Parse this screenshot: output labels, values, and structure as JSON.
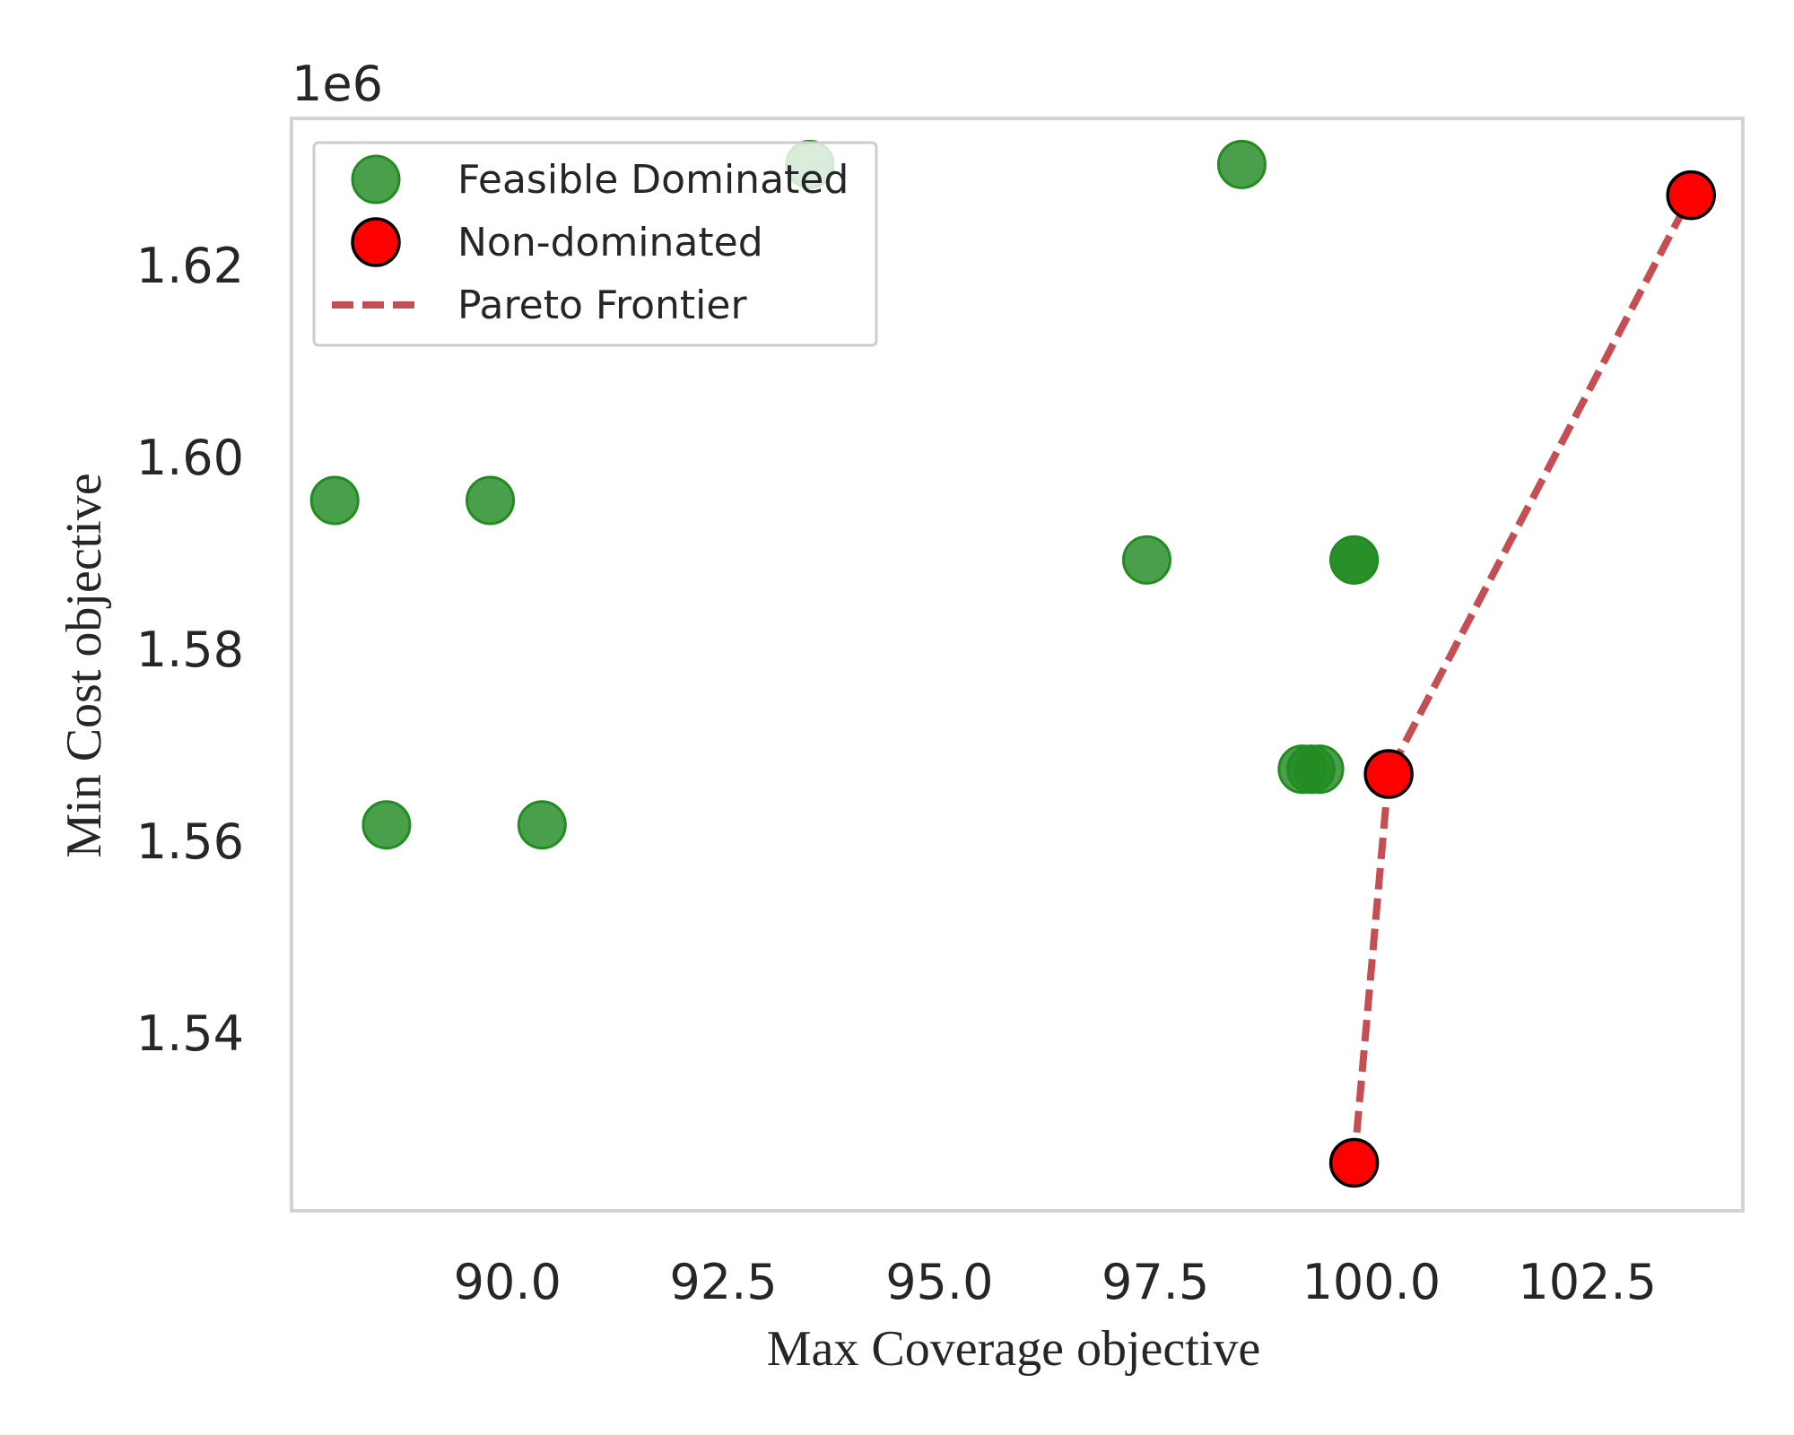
{
  "chart_data": {
    "type": "scatter",
    "title": "",
    "xlabel": "Max Coverage objective",
    "ylabel": "Min Cost objective",
    "y_offset_label": "1e6",
    "xlim": [
      87.5,
      104.3
    ],
    "ylim": [
      1.5215,
      1.6353
    ],
    "x_ticks": [
      90.0,
      92.5,
      95.0,
      97.5,
      100.0,
      102.5
    ],
    "x_tick_labels": [
      "90.0",
      "92.5",
      "95.0",
      "97.5",
      "100.0",
      "102.5"
    ],
    "y_ticks": [
      1.54,
      1.56,
      1.58,
      1.6,
      1.62
    ],
    "y_tick_labels": [
      "1.54",
      "1.56",
      "1.58",
      "1.60",
      "1.62"
    ],
    "grid": false,
    "legend_placement": "top-left",
    "series": [
      {
        "name": "Feasible Dominated",
        "kind": "scatter",
        "color": "#228B22",
        "points": [
          [
            93.5,
            1.6305
          ],
          [
            98.5,
            1.6305
          ],
          [
            88.0,
            1.5955
          ],
          [
            89.8,
            1.5955
          ],
          [
            97.4,
            1.5893
          ],
          [
            99.8,
            1.5893
          ],
          [
            99.8,
            1.5893
          ],
          [
            99.2,
            1.5675
          ],
          [
            99.3,
            1.5675
          ],
          [
            99.4,
            1.5675
          ],
          [
            88.6,
            1.5617
          ],
          [
            90.4,
            1.5617
          ]
        ]
      },
      {
        "name": "Non-dominated",
        "kind": "scatter",
        "color": "#ff0000",
        "points": [
          [
            103.7,
            1.6273
          ],
          [
            100.2,
            1.567
          ],
          [
            99.8,
            1.5265
          ]
        ]
      },
      {
        "name": "Pareto Frontier",
        "kind": "line",
        "style": "dashed",
        "color": "#c44e52",
        "points": [
          [
            99.8,
            1.5265
          ],
          [
            100.2,
            1.567
          ],
          [
            103.7,
            1.6273
          ]
        ]
      }
    ]
  }
}
